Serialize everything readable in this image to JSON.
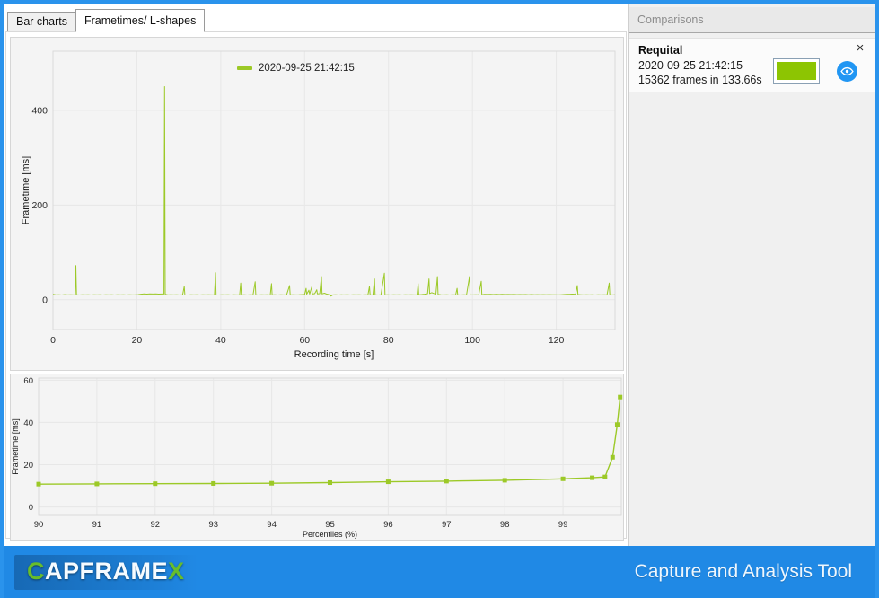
{
  "tabs": [
    {
      "label": "Bar charts",
      "active": false
    },
    {
      "label": "Frametimes/ L-shapes",
      "active": true
    }
  ],
  "comparisons": {
    "title": "Comparisons",
    "items": [
      {
        "title": "Requital",
        "datetime": "2020-09-25 21:42:15",
        "frames_text": "15362 frames in 133.66s",
        "color": "#8dc502",
        "close_glyph": "×"
      }
    ]
  },
  "footer": {
    "logo": {
      "c": "C",
      "mid": "APFRAME",
      "x": "X"
    },
    "tagline": "Capture and Analysis Tool",
    "background": "#2089e5"
  },
  "chart_data": [
    {
      "type": "line",
      "title": "",
      "legend": [
        "2020-09-25 21:42:15"
      ],
      "xlabel": "Recording time [s]",
      "ylabel": "Frametime [ms]",
      "xlim": [
        0,
        134
      ],
      "ylim": [
        -63,
        525
      ],
      "xticks": [
        0,
        20,
        40,
        60,
        80,
        100,
        120
      ],
      "yticks": [
        0,
        200,
        400
      ],
      "grid": true,
      "legend_position": "top-center",
      "color": "#9cc927",
      "points": [
        [
          0,
          11.5
        ],
        [
          0.7,
          10.2
        ],
        [
          1.4,
          10.6
        ],
        [
          2.1,
          10.1
        ],
        [
          2.8,
          10.7
        ],
        [
          3.5,
          10.2
        ],
        [
          4.2,
          10.5
        ],
        [
          4.9,
          10.2
        ],
        [
          5.3,
          10.4
        ],
        [
          5.45,
          72
        ],
        [
          5.6,
          10.4
        ],
        [
          6.3,
          10.1
        ],
        [
          7,
          10.6
        ],
        [
          7.7,
          10.2
        ],
        [
          8.4,
          10.5
        ],
        [
          9.1,
          10.1
        ],
        [
          9.8,
          10.4
        ],
        [
          10.5,
          10.2
        ],
        [
          11.2,
          10.6
        ],
        [
          11.9,
          10.1
        ],
        [
          12.6,
          10.4
        ],
        [
          13.3,
          10.2
        ],
        [
          14,
          10.5
        ],
        [
          14.7,
          10.1
        ],
        [
          15.4,
          10.4
        ],
        [
          16.1,
          10.2
        ],
        [
          16.8,
          10.6
        ],
        [
          17.5,
          10.1
        ],
        [
          18.2,
          10.4
        ],
        [
          18.9,
          10.2
        ],
        [
          19.6,
          10.5
        ],
        [
          20.3,
          10.8
        ],
        [
          21,
          11.8
        ],
        [
          21.7,
          12.3
        ],
        [
          22.4,
          12
        ],
        [
          23.1,
          12.4
        ],
        [
          23.8,
          12.1
        ],
        [
          24.5,
          12.3
        ],
        [
          25.2,
          12
        ],
        [
          25.9,
          12.2
        ],
        [
          26.45,
          12.1
        ],
        [
          26.6,
          450
        ],
        [
          26.75,
          11.5
        ],
        [
          27.4,
          10.3
        ],
        [
          28.1,
          10.6
        ],
        [
          28.8,
          10.2
        ],
        [
          29.5,
          10.5
        ],
        [
          30.2,
          10.1
        ],
        [
          30.9,
          10.4
        ],
        [
          31.3,
          28
        ],
        [
          31.45,
          10.3
        ],
        [
          32.2,
          10.1
        ],
        [
          32.9,
          10.5
        ],
        [
          33.6,
          10.2
        ],
        [
          34.3,
          10.6
        ],
        [
          35,
          10.1
        ],
        [
          35.7,
          10.4
        ],
        [
          36.4,
          10.2
        ],
        [
          37.1,
          10.5
        ],
        [
          37.8,
          10.2
        ],
        [
          38.5,
          10.4
        ],
        [
          38.75,
          57
        ],
        [
          38.9,
          10.3
        ],
        [
          39.6,
          10.1
        ],
        [
          40.3,
          10.5
        ],
        [
          41,
          10.2
        ],
        [
          41.7,
          10.6
        ],
        [
          42.4,
          10.1
        ],
        [
          43.1,
          10.4
        ],
        [
          43.8,
          10.2
        ],
        [
          44.5,
          10.5
        ],
        [
          44.75,
          35
        ],
        [
          44.9,
          10.2
        ],
        [
          45.6,
          10.5
        ],
        [
          46.3,
          10.1
        ],
        [
          47,
          10.4
        ],
        [
          47.7,
          10.2
        ],
        [
          48.2,
          38
        ],
        [
          48.35,
          10.4
        ],
        [
          49,
          10.1
        ],
        [
          49.7,
          10.5
        ],
        [
          50.4,
          10.2
        ],
        [
          51.1,
          10.4
        ],
        [
          51.8,
          10.1
        ],
        [
          52.1,
          34
        ],
        [
          52.25,
          10.3
        ],
        [
          52.9,
          10.5
        ],
        [
          53.6,
          10.1
        ],
        [
          54.3,
          10.4
        ],
        [
          55,
          10.2
        ],
        [
          55.7,
          10.5
        ],
        [
          56.4,
          30
        ],
        [
          56.55,
          10.3
        ],
        [
          57.2,
          10.6
        ],
        [
          57.9,
          10.2
        ],
        [
          58.6,
          10.5
        ],
        [
          59.3,
          10.8
        ],
        [
          60,
          11.2
        ],
        [
          60.35,
          24
        ],
        [
          60.5,
          11.8
        ],
        [
          61,
          20
        ],
        [
          61.2,
          12
        ],
        [
          61.7,
          27
        ],
        [
          61.85,
          12.2
        ],
        [
          62.4,
          12.8
        ],
        [
          62.9,
          21
        ],
        [
          63.05,
          12.4
        ],
        [
          63.6,
          12.9
        ],
        [
          64,
          49
        ],
        [
          64.15,
          12.3
        ],
        [
          64.7,
          13.8
        ],
        [
          65.2,
          12.2
        ],
        [
          65.8,
          10.8
        ],
        [
          66.3,
          7.8
        ],
        [
          66.7,
          10.3
        ],
        [
          67.4,
          10.6
        ],
        [
          68.1,
          10.1
        ],
        [
          68.8,
          10.4
        ],
        [
          69.5,
          10.2
        ],
        [
          70.2,
          10.5
        ],
        [
          70.9,
          10.1
        ],
        [
          71.6,
          10.4
        ],
        [
          72.3,
          10.2
        ],
        [
          73,
          10.6
        ],
        [
          73.7,
          10.1
        ],
        [
          74.4,
          10.4
        ],
        [
          75.1,
          10.3
        ],
        [
          75.45,
          28
        ],
        [
          75.6,
          10.6
        ],
        [
          76.3,
          10.2
        ],
        [
          76.65,
          44
        ],
        [
          76.8,
          10.4
        ],
        [
          77.5,
          10.1
        ],
        [
          78.2,
          10.5
        ],
        [
          79,
          56
        ],
        [
          79.15,
          10.3
        ],
        [
          79.8,
          10.6
        ],
        [
          80.5,
          10.1
        ],
        [
          81.2,
          10.4
        ],
        [
          81.9,
          10.2
        ],
        [
          82.6,
          10.5
        ],
        [
          83.3,
          10.1
        ],
        [
          84,
          10.4
        ],
        [
          84.7,
          10.2
        ],
        [
          85.4,
          10.6
        ],
        [
          86.1,
          10.2
        ],
        [
          86.8,
          10.4
        ],
        [
          87.05,
          34
        ],
        [
          87.2,
          10.5
        ],
        [
          87.9,
          11
        ],
        [
          88.6,
          11.8
        ],
        [
          89.3,
          12.6
        ],
        [
          89.65,
          44
        ],
        [
          89.8,
          13
        ],
        [
          90.3,
          15
        ],
        [
          90.8,
          13.2
        ],
        [
          91.3,
          12
        ],
        [
          91.65,
          49
        ],
        [
          91.8,
          11.2
        ],
        [
          92.5,
          10.4
        ],
        [
          93.2,
          10.2
        ],
        [
          93.9,
          10.5
        ],
        [
          94.6,
          10.1
        ],
        [
          95.3,
          10.4
        ],
        [
          96,
          10.2
        ],
        [
          96.35,
          24
        ],
        [
          96.5,
          10.4
        ],
        [
          97.2,
          10.1
        ],
        [
          97.9,
          10.5
        ],
        [
          98.6,
          10.2
        ],
        [
          99.3,
          49
        ],
        [
          99.45,
          10.4
        ],
        [
          100.1,
          10.2
        ],
        [
          100.8,
          10.6
        ],
        [
          101.5,
          10.3
        ],
        [
          102.1,
          39
        ],
        [
          102.25,
          10.5
        ],
        [
          102.9,
          11.4
        ],
        [
          103.6,
          11.1
        ],
        [
          104.3,
          11.5
        ],
        [
          105,
          11
        ],
        [
          105.7,
          11.3
        ],
        [
          106.4,
          11
        ],
        [
          107.1,
          11.4
        ],
        [
          107.8,
          11
        ],
        [
          108.5,
          11.2
        ],
        [
          109.2,
          10.9
        ],
        [
          109.9,
          11.1
        ],
        [
          110.6,
          10.8
        ],
        [
          111.3,
          11
        ],
        [
          112,
          10.7
        ],
        [
          112.7,
          11
        ],
        [
          113.4,
          10.6
        ],
        [
          114.1,
          10.9
        ],
        [
          114.8,
          10.6
        ],
        [
          115.5,
          10.8
        ],
        [
          116.2,
          10.5
        ],
        [
          116.9,
          10.8
        ],
        [
          117.6,
          10.4
        ],
        [
          118.3,
          10.7
        ],
        [
          119,
          10.4
        ],
        [
          119.7,
          10.6
        ],
        [
          120.4,
          10.3
        ],
        [
          121.1,
          10.6
        ],
        [
          121.8,
          10.9
        ],
        [
          122.5,
          11.3
        ],
        [
          123.2,
          11.6
        ],
        [
          123.9,
          11.9
        ],
        [
          124.6,
          11.5
        ],
        [
          125,
          30
        ],
        [
          125.15,
          11
        ],
        [
          125.8,
          10.6
        ],
        [
          126.5,
          10.3
        ],
        [
          127.2,
          10.6
        ],
        [
          127.9,
          10.2
        ],
        [
          128.6,
          10.5
        ],
        [
          129.3,
          10.1
        ],
        [
          130,
          10.4
        ],
        [
          130.7,
          10.2
        ],
        [
          131.4,
          10.5
        ],
        [
          132.1,
          10.3
        ],
        [
          132.6,
          35
        ],
        [
          132.75,
          10.4
        ],
        [
          133.4,
          10.2
        ],
        [
          134,
          10.6
        ]
      ]
    },
    {
      "type": "line",
      "title": "",
      "xlabel": "Percentiles (%)",
      "ylabel": "Frametime [ms]",
      "xlim": [
        90,
        100
      ],
      "ylim": [
        -4,
        61
      ],
      "xticks": [
        90,
        91,
        92,
        93,
        94,
        95,
        96,
        97,
        98,
        99
      ],
      "yticks": [
        0,
        20,
        40,
        60
      ],
      "grid": true,
      "markers": true,
      "color": "#9cc927",
      "points": [
        [
          90,
          10.8
        ],
        [
          91,
          10.9
        ],
        [
          92,
          11.0
        ],
        [
          93,
          11.1
        ],
        [
          94,
          11.2
        ],
        [
          95,
          11.5
        ],
        [
          96,
          11.9
        ],
        [
          97,
          12.2
        ],
        [
          98,
          12.6
        ],
        [
          99,
          13.3
        ],
        [
          99.5,
          13.8
        ],
        [
          99.72,
          14.2
        ],
        [
          99.85,
          23.5
        ],
        [
          99.93,
          39
        ],
        [
          99.98,
          52
        ]
      ]
    }
  ]
}
